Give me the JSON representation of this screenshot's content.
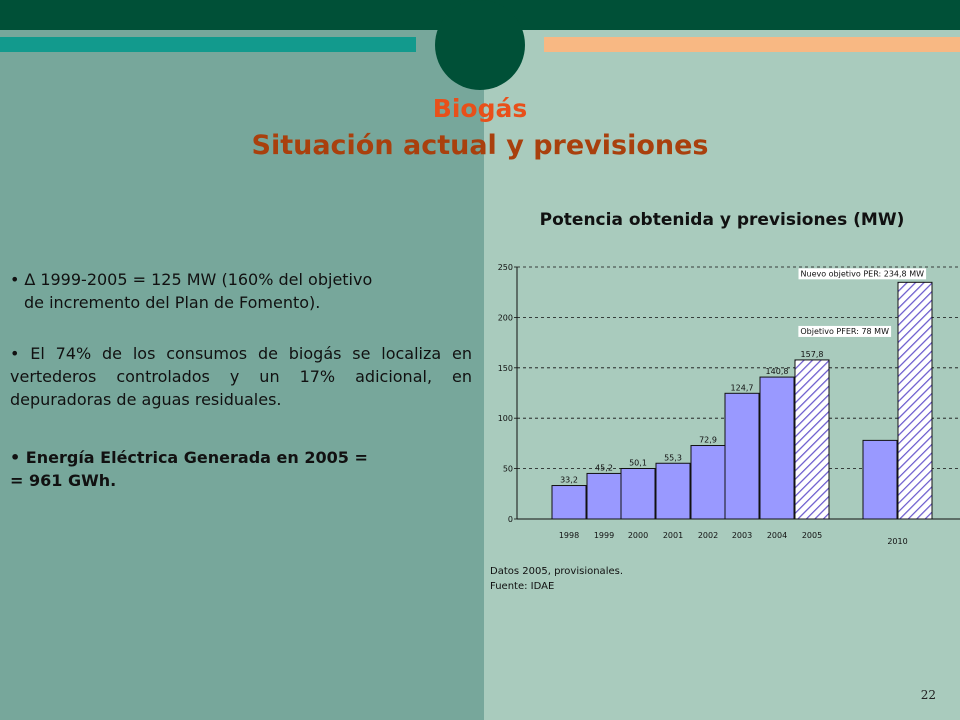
{
  "slide": {
    "title_line1": "Biogás",
    "title_line2": "Situación actual y previsiones",
    "page_number": "22"
  },
  "bullets": {
    "b1_line1": "∆ 1999-2005 = 125 MW (160% del objetivo",
    "b1_line2": "de incremento del Plan de Fomento).",
    "b2": "El 74% de los consumos de biogás se localiza en vertederos controlados y un 17% adicional, en depuradoras de aguas residuales.",
    "b3_line1": "Energía Eléctrica Generada en 2005 =",
    "b3_line2": "= 961 GWh."
  },
  "chart_title": "Potencia obtenida y previsiones (MW)",
  "notes": {
    "line1": "Datos 2005, provisionales.",
    "line2": "Fuente: IDAE"
  },
  "colors": {
    "bar_fill": "#9999ff",
    "hatch": "#6a5acd",
    "background": "#a9cbbd",
    "panel": "#77a79b"
  },
  "chart_data": {
    "type": "bar",
    "ylim": [
      0,
      250
    ],
    "yticks": [
      "0",
      "50",
      "100",
      "150",
      "200",
      "250"
    ],
    "grid": "dashed horizontal",
    "categories": [
      "1998",
      "1999",
      "2000",
      "2001",
      "2002",
      "2003",
      "2004",
      "2005",
      "2010"
    ],
    "bars": [
      {
        "category": "1998",
        "value": 33.2,
        "label": "33,2",
        "style": "solid"
      },
      {
        "category": "1999",
        "value": 45.2,
        "label": "45,2",
        "style": "solid"
      },
      {
        "category": "2000",
        "value": 50.1,
        "label": "50,1",
        "style": "solid"
      },
      {
        "category": "2001",
        "value": 55.3,
        "label": "55,3",
        "style": "solid"
      },
      {
        "category": "2002",
        "value": 72.9,
        "label": "72,9",
        "style": "solid"
      },
      {
        "category": "2003",
        "value": 124.7,
        "label": "124,7",
        "style": "solid"
      },
      {
        "category": "2004",
        "value": 140.8,
        "label": "140,8",
        "style": "solid"
      },
      {
        "category": "2005",
        "value": 157.8,
        "label": "157,8",
        "style": "hatched"
      },
      {
        "category": "2010",
        "value": 78,
        "label": "",
        "style": "solid"
      },
      {
        "category": "2010",
        "value": 234.8,
        "label": "",
        "style": "hatched"
      }
    ],
    "annotations": [
      {
        "text": "Nuevo objetivo PER: 234,8 MW",
        "value": 234.8
      },
      {
        "text": "Objetivo PFER: 78 MW",
        "value": 78
      }
    ]
  }
}
